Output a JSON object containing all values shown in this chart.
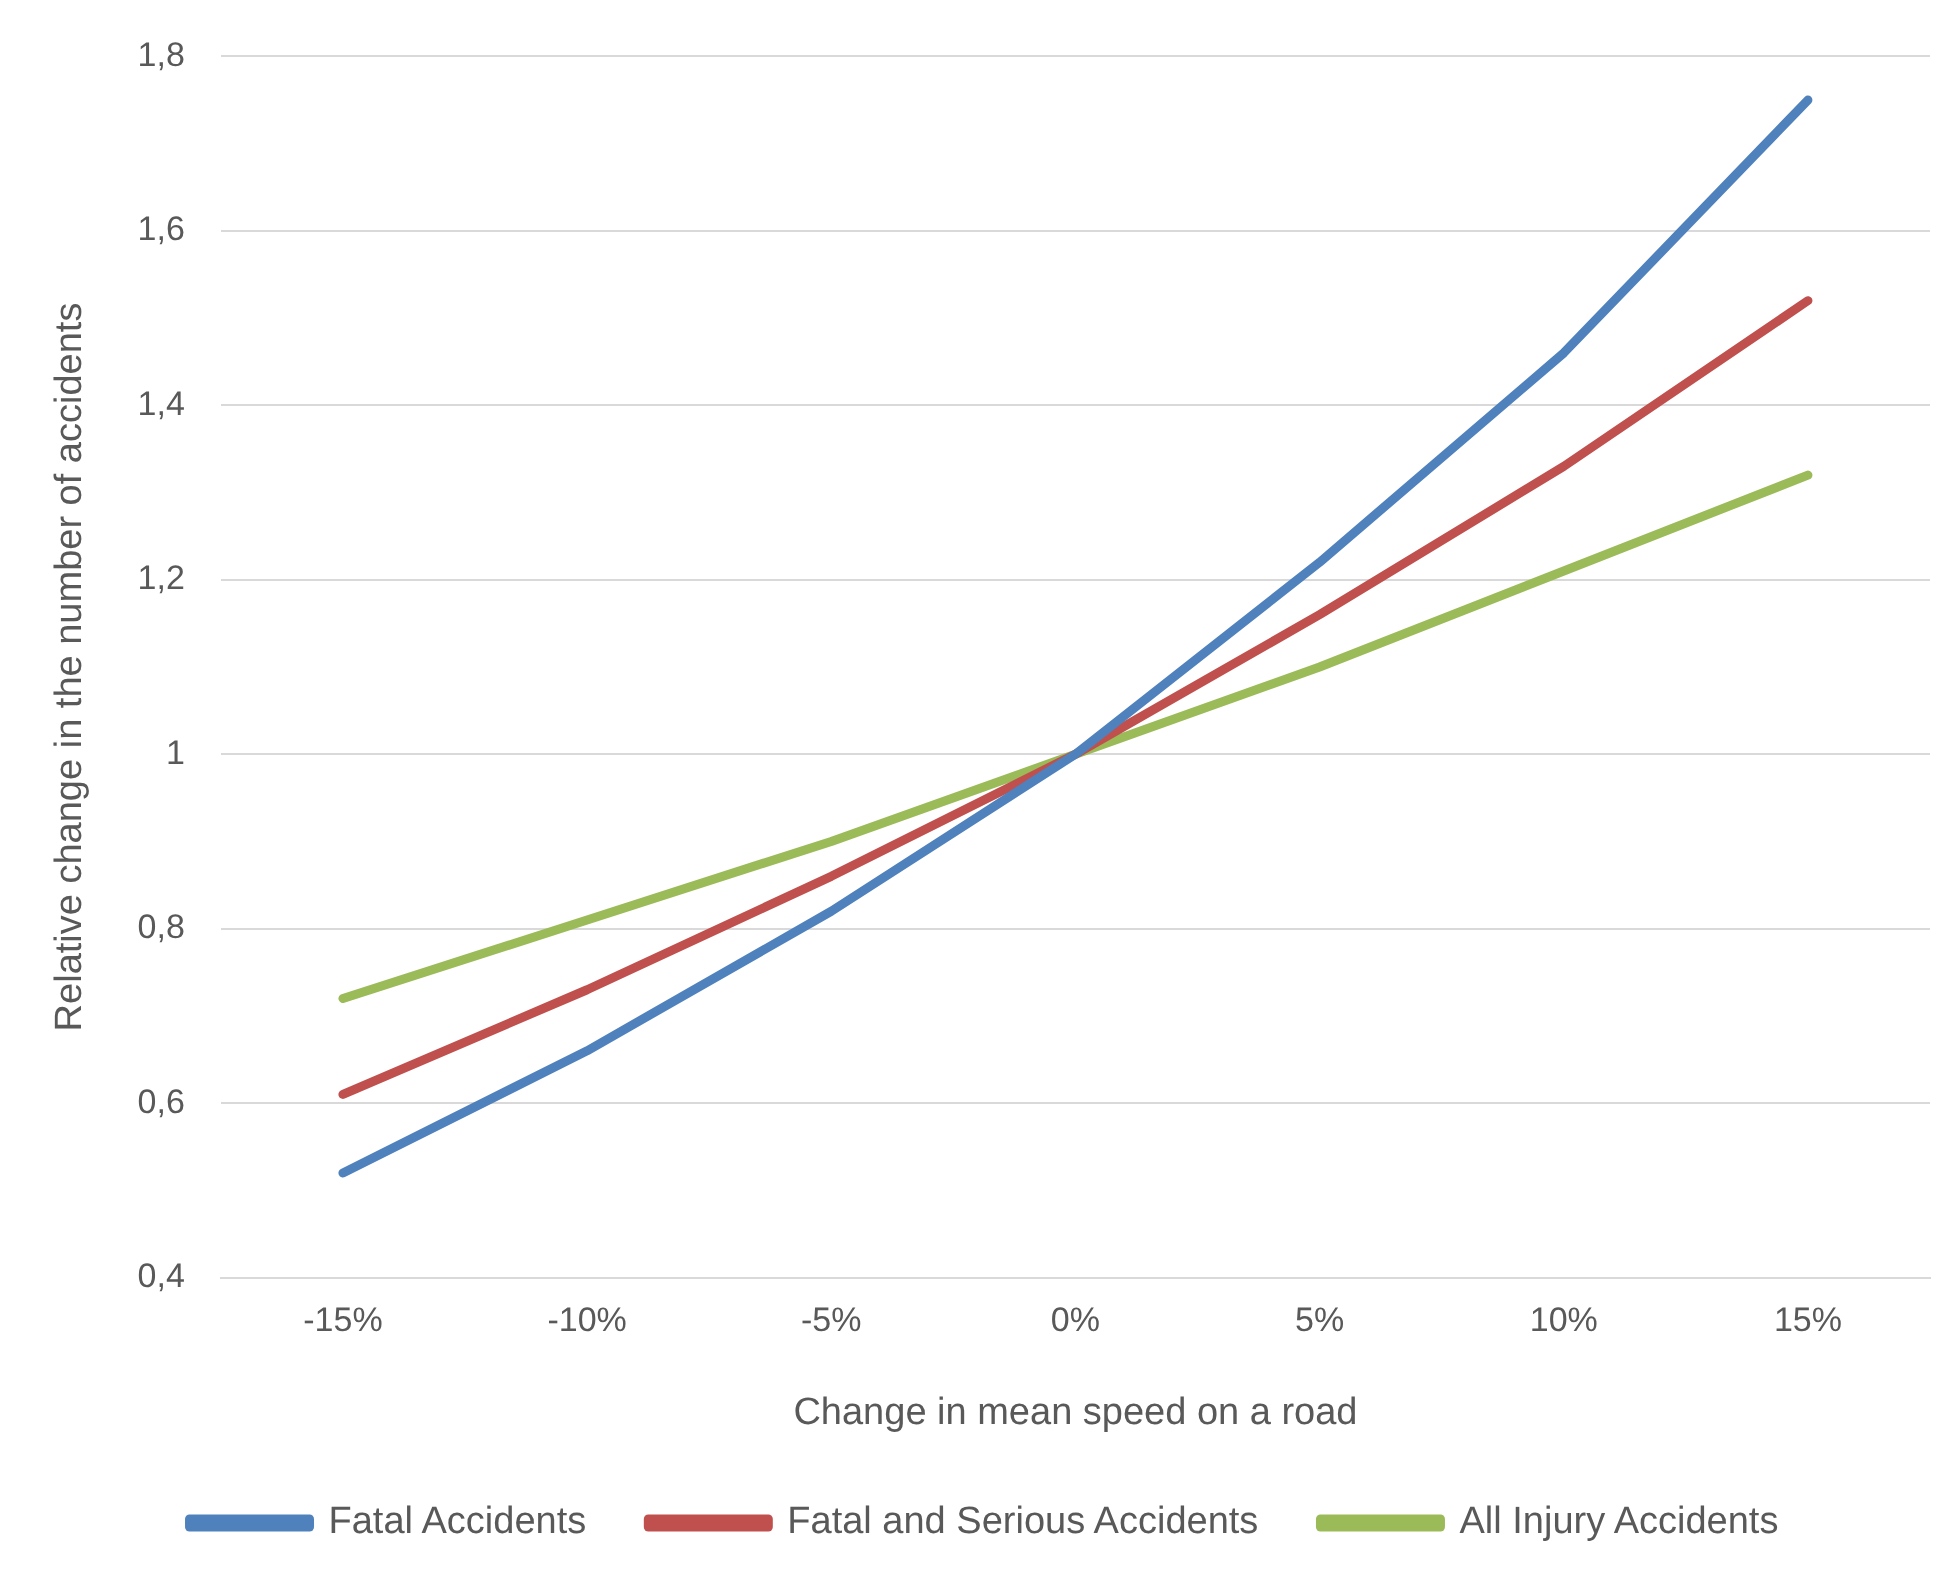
{
  "chart_data": {
    "type": "line",
    "xlabel": "Change in mean speed on a road",
    "ylabel": "Relative change in the number of accidents",
    "categories": [
      "-15%",
      "-10%",
      "-5%",
      "0%",
      "5%",
      "10%",
      "15%"
    ],
    "ylim": [
      0.4,
      1.8
    ],
    "yticks": [
      {
        "value": 0.4,
        "label": "0,4"
      },
      {
        "value": 0.6,
        "label": "0,6"
      },
      {
        "value": 0.8,
        "label": "0,8"
      },
      1,
      {
        "value": 1.2,
        "label": "1,2"
      },
      {
        "value": 1.4,
        "label": "1,4"
      },
      {
        "value": 1.6,
        "label": "1,6"
      },
      {
        "value": 1.8,
        "label": "1,8"
      }
    ],
    "grid": "y",
    "legend": "bottom",
    "marker": "none",
    "line_style": "solid",
    "series": [
      {
        "name": "Fatal Accidents",
        "color": "#4f81bd",
        "values": [
          0.52,
          0.66,
          0.82,
          1,
          1.22,
          1.46,
          1.75
        ]
      },
      {
        "name": "Fatal and Serious Accidents",
        "color": "#c0504d",
        "values": [
          0.61,
          0.73,
          0.86,
          1,
          1.16,
          1.33,
          1.52
        ]
      },
      {
        "name": "All Injury Accidents",
        "color": "#9bbb59",
        "values": [
          0.72,
          0.81,
          0.9,
          1,
          1.1,
          1.21,
          1.32
        ]
      }
    ]
  }
}
